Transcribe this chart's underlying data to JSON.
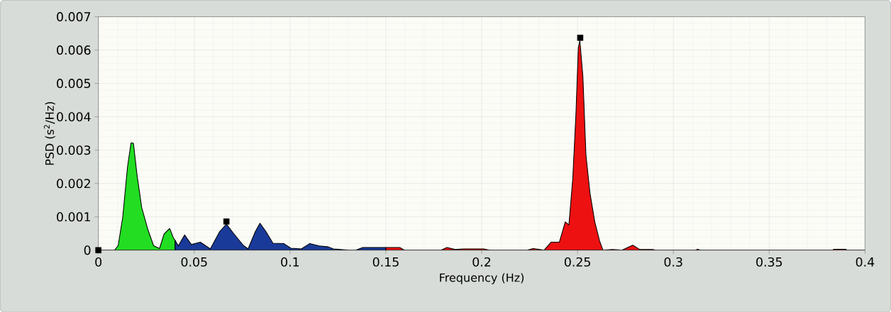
{
  "chart_data": {
    "type": "area",
    "xlabel": "Frequency (Hz)",
    "ylabel": "PSD (s$^{2}$/Hz)",
    "xlim": [
      0,
      0.4
    ],
    "ylim": [
      0,
      0.007
    ],
    "xticks": [
      0,
      0.05,
      0.1,
      0.15,
      0.2,
      0.25,
      0.3,
      0.35,
      0.4
    ],
    "yticks": [
      0,
      0.001,
      0.002,
      0.003,
      0.004,
      0.005,
      0.006,
      0.007
    ],
    "grid": true,
    "series": [
      {
        "color": "#22dd22",
        "x": [
          0,
          0.0084,
          0.0103,
          0.0127,
          0.0152,
          0.017,
          0.0175,
          0.0183,
          0.0201,
          0.0226,
          0.0257,
          0.0288,
          0.0319,
          0.0343,
          0.0372,
          0.0393,
          0.04
        ],
        "values": [
          0,
          0,
          0.000135,
          0.00099,
          0.0025,
          0.00321,
          0.00322,
          0.0032,
          0.00228,
          0.00128,
          0.00064,
          0.000135,
          5e-05,
          0.00049,
          0.00065,
          0.00035,
          0.0003
        ]
      },
      {
        "color": "#1a3a9a",
        "x": [
          0.04,
          0.0417,
          0.045,
          0.0485,
          0.0532,
          0.0584,
          0.0633,
          0.0668,
          0.0707,
          0.0757,
          0.0781,
          0.0819,
          0.0843,
          0.0874,
          0.0911,
          0.0967,
          0.1004,
          0.1059,
          0.1103,
          0.1152,
          0.12,
          0.1226,
          0.1306,
          0.1343,
          0.138,
          0.15
        ],
        "values": [
          0.0003,
          0.00013,
          0.00046,
          0.00017,
          0.00024,
          4e-05,
          0.00056,
          0.00078,
          0.00049,
          0.00014,
          4e-05,
          0.00056,
          0.00081,
          0.00056,
          0.00021,
          0.0002,
          6e-05,
          4e-05,
          0.0002,
          0.00013,
          0.0001,
          4e-05,
          0,
          0,
          8e-05,
          8e-05
        ]
      },
      {
        "color": "#ee1111",
        "x": [
          0.15,
          0.1572,
          0.1596,
          0.1788,
          0.1819,
          0.1862,
          0.1905,
          0.1991,
          0.201,
          0.2041,
          0.2238,
          0.2269,
          0.2325,
          0.2362,
          0.2405,
          0.2436,
          0.2455,
          0.2475,
          0.2492,
          0.2504,
          0.2512,
          0.2528,
          0.2544,
          0.2565,
          0.259,
          0.2615,
          0.2633,
          0.2683,
          0.2732,
          0.2788,
          0.2825,
          0.2893,
          0.2905,
          0.3115,
          0.3127,
          0.314,
          0.3831,
          0.3837,
          0.39,
          0.3905,
          0.4
        ],
        "values": [
          8e-05,
          8e-05,
          0,
          0,
          8e-05,
          2e-05,
          4e-05,
          4e-05,
          4e-05,
          0,
          0,
          5e-05,
          0,
          0.00024,
          0.00024,
          0.00085,
          0.00076,
          0.00214,
          0.00414,
          0.00607,
          0.00629,
          0.00521,
          0.00285,
          0.00171,
          0.00085,
          0.00028,
          0,
          2e-05,
          0,
          0.00015,
          2e-05,
          2e-05,
          0,
          0,
          3e-05,
          0,
          0,
          3e-05,
          3e-05,
          0,
          0
        ]
      },
      {
        "type": "scatter",
        "marker": "square",
        "color": "#000000",
        "x": [
          0,
          0.0668,
          0.2514
        ],
        "values": [
          0,
          0.00086,
          0.00637
        ]
      }
    ]
  }
}
